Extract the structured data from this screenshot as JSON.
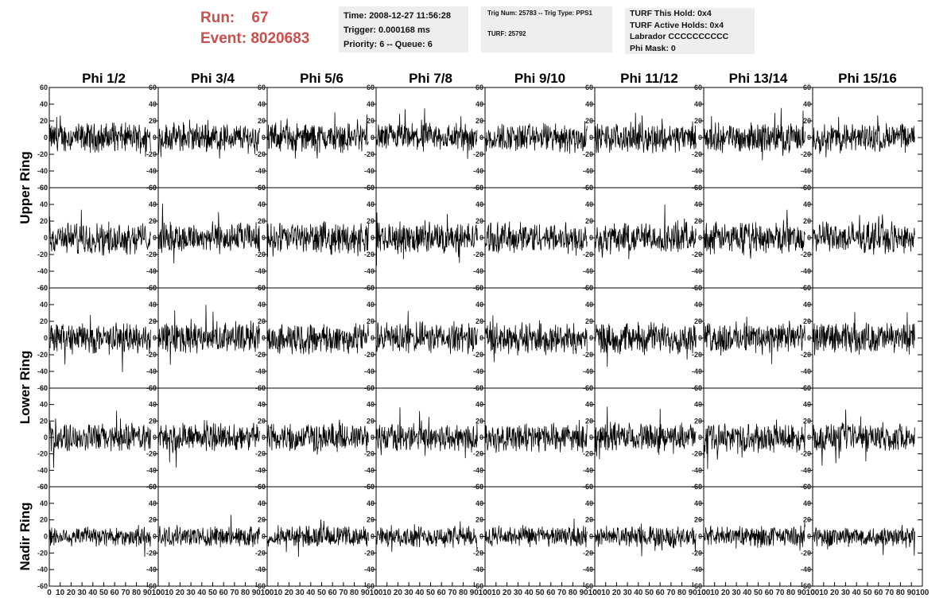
{
  "run": {
    "run_label": "Run:",
    "run_value": "67",
    "event_label": "Event:",
    "event_value": "8020683",
    "color": "#c9504b"
  },
  "info": {
    "time": "Time: 2008-12-27 11:56:28",
    "trigger": "Trigger: 0.000168 ms",
    "priority": "Priority: 6 -- Queue: 6",
    "trig_num": "Trig Num: 25783 -- Trig Type: PPS1",
    "turf_num": "TURF: 25792",
    "turf_hold": "TURF This Hold: 0x4",
    "turf_active": "TURF Active Holds: 0x4",
    "labrador": "Labrador CCCCCCCCCC",
    "phi_mask": "Phi Mask: 0"
  },
  "chart_data": {
    "type": "line",
    "columns": [
      "Phi 1/2",
      "Phi 3/4",
      "Phi 5/6",
      "Phi 7/8",
      "Phi 9/10",
      "Phi 11/12",
      "Phi 13/14",
      "Phi 15/16"
    ],
    "ring_labels": [
      {
        "label": "Upper Ring",
        "rows": [
          0,
          1
        ]
      },
      {
        "label": "Lower Ring",
        "rows": [
          2,
          3
        ]
      },
      {
        "label": "Nadir Ring",
        "rows": [
          4
        ]
      }
    ],
    "rows": 5,
    "ylim": [
      -60,
      60
    ],
    "yticks": [
      -60,
      -40,
      -20,
      0,
      20,
      40,
      60
    ],
    "ytick_labels": [
      "-60",
      "-40",
      "-20",
      "0",
      "20",
      "40",
      "60"
    ],
    "xlim": [
      0,
      100
    ],
    "xticks": [
      0,
      10,
      20,
      30,
      40,
      50,
      60,
      70,
      80,
      90,
      100
    ],
    "xtick_labels": [
      "0",
      "10",
      "20",
      "30",
      "40",
      "50",
      "60",
      "70",
      "80",
      "90",
      "100"
    ],
    "samples_per_trace": 260,
    "trace_x_end": 93,
    "row_amplitudes": [
      14,
      15,
      15,
      14,
      10
    ],
    "line_color": "#000000",
    "grid": false,
    "legend": "none"
  }
}
